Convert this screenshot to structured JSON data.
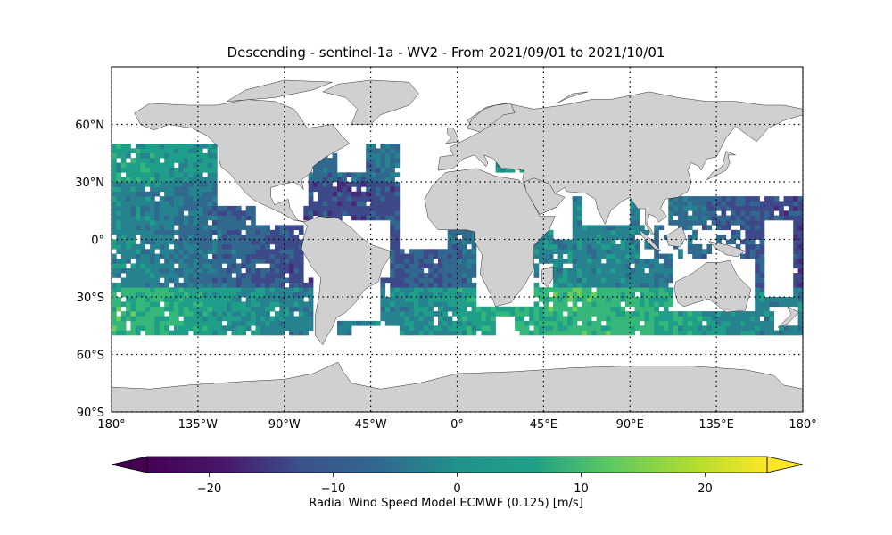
{
  "title": "Descending - sentinel-1a - WV2 - From 2021/09/01 to 2021/10/01",
  "map": {
    "projection": "PlateCarree",
    "lon_range": [
      -180,
      180
    ],
    "lat_range": [
      -90,
      90
    ],
    "land_color": "#d0d0d0",
    "coastline_color": "#000000",
    "gridlines": "dotted",
    "lon_ticks": [
      {
        "value": -180,
        "label": "180°"
      },
      {
        "value": -135,
        "label": "135°W"
      },
      {
        "value": -90,
        "label": "90°W"
      },
      {
        "value": -45,
        "label": "45°W"
      },
      {
        "value": 0,
        "label": "0°"
      },
      {
        "value": 45,
        "label": "45°E"
      },
      {
        "value": 90,
        "label": "90°E"
      },
      {
        "value": 135,
        "label": "135°E"
      },
      {
        "value": 180,
        "label": "180°"
      }
    ],
    "lat_ticks": [
      {
        "value": 60,
        "label": "60°N"
      },
      {
        "value": 30,
        "label": "30°N"
      },
      {
        "value": 0,
        "label": "0°"
      },
      {
        "value": -30,
        "label": "30°S"
      },
      {
        "value": -60,
        "label": "60°S"
      },
      {
        "value": -90,
        "label": "90°S"
      }
    ],
    "data_lat_range": [
      -50,
      50
    ],
    "colormap": "viridis"
  },
  "colorbar": {
    "label": "Radial Wind Speed Model ECMWF (0.125) [m/s]",
    "range": [
      -27.5,
      27.5
    ],
    "extend": "both",
    "ticks": [
      {
        "value": -20,
        "label": "−20"
      },
      {
        "value": -10,
        "label": "−10"
      },
      {
        "value": 0,
        "label": "0"
      },
      {
        "value": 10,
        "label": "10"
      },
      {
        "value": 20,
        "label": "20"
      }
    ]
  }
}
